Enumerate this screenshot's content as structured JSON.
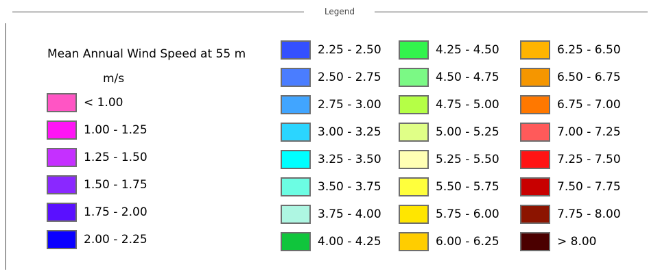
{
  "legend": {
    "caption": "Legend",
    "title": "Mean Annual Wind Speed at 55 m",
    "unit": "m/s"
  },
  "entries": [
    {
      "label": "< 1.00",
      "color": "#ff55c4"
    },
    {
      "label": "1.00 - 1.25",
      "color": "#ff14f5"
    },
    {
      "label": "1.25 - 1.50",
      "color": "#c530ff"
    },
    {
      "label": "1.50 - 1.75",
      "color": "#8a28ff"
    },
    {
      "label": "1.75 - 2.00",
      "color": "#5a10ff"
    },
    {
      "label": "2.00 - 2.25",
      "color": "#0a00ff"
    },
    {
      "label": "2.25 - 2.50",
      "color": "#3450ff"
    },
    {
      "label": "2.50 - 2.75",
      "color": "#4a7dff"
    },
    {
      "label": "2.75 - 3.00",
      "color": "#41a5ff"
    },
    {
      "label": "3.00 - 3.25",
      "color": "#2bd5ff"
    },
    {
      "label": "3.25 - 3.50",
      "color": "#00ffff"
    },
    {
      "label": "3.50 - 3.75",
      "color": "#6cfde3"
    },
    {
      "label": "3.75 - 4.00",
      "color": "#aef6e2"
    },
    {
      "label": "4.00 - 4.25",
      "color": "#10c53c"
    },
    {
      "label": "4.25 - 4.50",
      "color": "#32f44d"
    },
    {
      "label": "4.50 - 4.75",
      "color": "#7bf985"
    },
    {
      "label": "4.75 - 5.00",
      "color": "#b5ff46"
    },
    {
      "label": "5.00 - 5.25",
      "color": "#e0ff87"
    },
    {
      "label": "5.25 - 5.50",
      "color": "#ffffb4"
    },
    {
      "label": "5.50 - 5.75",
      "color": "#ffff3c"
    },
    {
      "label": "5.75 - 6.00",
      "color": "#ffe600"
    },
    {
      "label": "6.00 - 6.25",
      "color": "#ffcd00"
    },
    {
      "label": "6.25 - 6.50",
      "color": "#ffb400"
    },
    {
      "label": "6.50 - 6.75",
      "color": "#f59600"
    },
    {
      "label": "6.75 - 7.00",
      "color": "#ff7800"
    },
    {
      "label": "7.00 - 7.25",
      "color": "#ff5a5a"
    },
    {
      "label": "7.25 - 7.50",
      "color": "#ff1414"
    },
    {
      "label": "7.50 - 7.75",
      "color": "#c80000"
    },
    {
      "label": "7.75 - 8.00",
      "color": "#8c1400"
    },
    {
      "label": "> 8.00",
      "color": "#4b0000"
    }
  ]
}
